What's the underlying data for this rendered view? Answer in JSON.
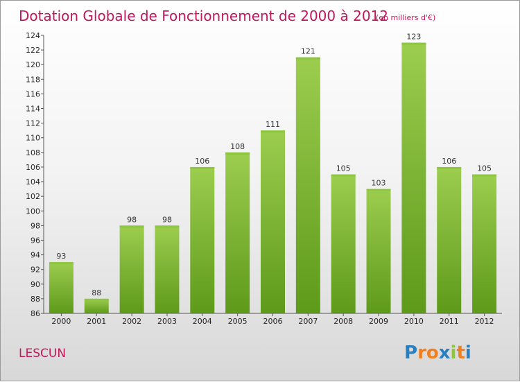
{
  "chart_data": {
    "type": "bar",
    "title": "Dotation Globale de Fonctionnement de 2000 à 2012",
    "subtitle": "(en milliers d'€)",
    "categories": [
      "2000",
      "2001",
      "2002",
      "2003",
      "2004",
      "2005",
      "2006",
      "2007",
      "2008",
      "2009",
      "2010",
      "2011",
      "2012"
    ],
    "values": [
      93,
      88,
      98,
      98,
      106,
      108,
      111,
      121,
      105,
      103,
      123,
      106,
      105
    ],
    "value_labels": [
      "93",
      "88",
      "98",
      "98",
      "106",
      "108",
      "111",
      "121",
      "105",
      "103",
      "123",
      "106",
      "105"
    ],
    "ylim": [
      86,
      124
    ],
    "yticks": [
      "86",
      "88",
      "90",
      "92",
      "94",
      "96",
      "98",
      "100",
      "102",
      "104",
      "106",
      "108",
      "110",
      "112",
      "114",
      "116",
      "118",
      "120",
      "122",
      "124"
    ],
    "grid": false,
    "bar_color": "#8dc63f",
    "bar_color_dark": "#5e9a1a"
  },
  "place_label": "LESCUN",
  "logo": {
    "letters": [
      "P",
      "r",
      "o",
      "x",
      "i",
      "t",
      "i"
    ],
    "colors": [
      "#2a7fc0",
      "#f07f1f",
      "#f07f1f",
      "#2a7fc0",
      "#8dc63f",
      "#f07f1f",
      "#2a7fc0"
    ]
  }
}
